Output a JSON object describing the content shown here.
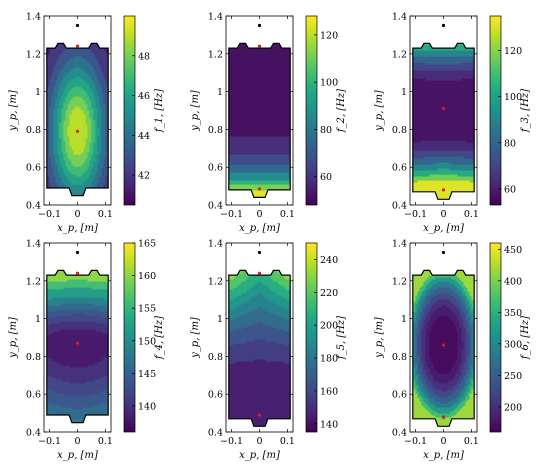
{
  "chart_data": [
    {
      "type": "heatmap",
      "xlabel": "x_p, [m]",
      "ylabel": "y_p, [m]",
      "xticks": [
        "−0.1",
        "0",
        "0.1"
      ],
      "yticks": [
        "0.4",
        "0.6",
        "0.8",
        "1",
        "1.2",
        "1.4"
      ],
      "xlim": [
        -0.12,
        0.12
      ],
      "ylim": [
        0.4,
        1.4
      ],
      "colorbar": {
        "label": "f_1, [Hz]",
        "ticks": [
          "42",
          "44",
          "46",
          "48"
        ],
        "range": [
          40.5,
          50
        ]
      },
      "bottom_edge": 0.49,
      "field": {
        "kind": "peak",
        "center": [
          0.0,
          0.79
        ],
        "max": 49.5,
        "min": 40.7
      },
      "contour_levels": [
        41.5,
        42.5,
        43.5,
        44.5,
        45.5,
        46.5,
        47.5,
        48.5
      ],
      "markers": {
        "red": [
          [
            0.0,
            1.24
          ],
          [
            0.0,
            0.79
          ]
        ],
        "black": [
          [
            0.0,
            1.35
          ]
        ]
      }
    },
    {
      "type": "heatmap",
      "xlabel": "x_p, [m]",
      "ylabel": "y_p, [m]",
      "xticks": [
        "−0.1",
        "0",
        "0.1"
      ],
      "yticks": [
        "0.4",
        "0.6",
        "0.8",
        "1",
        "1.2",
        "1.4"
      ],
      "xlim": [
        -0.12,
        0.12
      ],
      "ylim": [
        0.4,
        1.4
      ],
      "colorbar": {
        "label": "f_2, [Hz]",
        "ticks": [
          "60",
          "80",
          "100",
          "120"
        ],
        "range": [
          48,
          128
        ]
      },
      "bottom_edge": 0.48,
      "field": {
        "kind": "bottom",
        "min": 50,
        "max": 125
      },
      "contour_levels": [
        55,
        62,
        70,
        80,
        92,
        105,
        118
      ],
      "markers": {
        "red": [
          [
            0.0,
            1.24
          ],
          [
            0.0,
            0.485
          ]
        ],
        "black": [
          [
            0.0,
            1.35
          ]
        ]
      }
    },
    {
      "type": "heatmap",
      "xlabel": "x_p, [m]",
      "ylabel": "y_p, [m]",
      "xticks": [
        "−0.1",
        "0",
        "0.1"
      ],
      "yticks": [
        "0.4",
        "0.6",
        "0.8",
        "1",
        "1.2",
        "1.4"
      ],
      "xlim": [
        -0.12,
        0.12
      ],
      "ylim": [
        0.4,
        1.4
      ],
      "colorbar": {
        "label": "f_3, [Hz]",
        "ticks": [
          "60",
          "80",
          "100",
          "120"
        ],
        "range": [
          53,
          135
        ]
      },
      "bottom_edge": 0.47,
      "field": {
        "kind": "bothends",
        "center_y": 0.9,
        "min": 55,
        "max": 132
      },
      "contour_levels": [
        60,
        66,
        74,
        84,
        96,
        110,
        124
      ],
      "markers": {
        "red": [
          [
            0.0,
            0.91
          ],
          [
            0.0,
            0.48
          ]
        ],
        "black": [
          [
            0.0,
            1.35
          ]
        ]
      }
    },
    {
      "type": "heatmap",
      "xlabel": "x_p, [m]",
      "ylabel": "y_p, [m]",
      "xticks": [
        "−0.1",
        "0",
        "0.1"
      ],
      "yticks": [
        "0.4",
        "0.6",
        "0.8",
        "1",
        "1.2",
        "1.4"
      ],
      "xlim": [
        -0.12,
        0.12
      ],
      "ylim": [
        0.4,
        1.4
      ],
      "colorbar": {
        "label": "f_4, [Hz]",
        "ticks": [
          "140",
          "145",
          "150",
          "155",
          "160",
          "165"
        ],
        "range": [
          136,
          165
        ]
      },
      "bottom_edge": 0.49,
      "field": {
        "kind": "band",
        "center_y": 0.87,
        "min": 137,
        "max": 163
      },
      "contour_levels": [
        139,
        141,
        143,
        145,
        147,
        150,
        154,
        158
      ],
      "markers": {
        "red": [
          [
            0.0,
            1.24
          ],
          [
            0.0,
            0.87
          ]
        ],
        "black": [
          [
            0.0,
            1.35
          ]
        ]
      }
    },
    {
      "type": "heatmap",
      "xlabel": "x_p, [m]",
      "ylabel": "y_p, [m]",
      "xticks": [
        "−0.1",
        "0",
        "0.1"
      ],
      "yticks": [
        "0.4",
        "0.6",
        "0.8",
        "1",
        "1.2",
        "1.4"
      ],
      "xlim": [
        -0.12,
        0.12
      ],
      "ylim": [
        0.4,
        1.4
      ],
      "colorbar": {
        "label": "f_5, [Hz]",
        "ticks": [
          "140",
          "160",
          "180",
          "200",
          "220",
          "240"
        ],
        "range": [
          135,
          250
        ]
      },
      "bottom_edge": 0.47,
      "field": {
        "kind": "top",
        "min": 138,
        "max": 248
      },
      "contour_levels": [
        150,
        160,
        170,
        180,
        190,
        200,
        212,
        225,
        238
      ],
      "markers": {
        "red": [
          [
            0.0,
            1.24
          ],
          [
            0.0,
            0.49
          ]
        ],
        "black": [
          [
            0.0,
            1.35
          ]
        ]
      }
    },
    {
      "type": "heatmap",
      "xlabel": "x_p, [m]",
      "ylabel": "y_p, [m]",
      "xticks": [
        "−0.1",
        "0",
        "0.1"
      ],
      "yticks": [
        "0.4",
        "0.6",
        "0.8",
        "1",
        "1.2",
        "1.4"
      ],
      "xlim": [
        -0.12,
        0.12
      ],
      "ylim": [
        0.4,
        1.4
      ],
      "colorbar": {
        "label": "f_6, [Hz]",
        "ticks": [
          "200",
          "250",
          "300",
          "350",
          "400",
          "450"
        ],
        "range": [
          160,
          460
        ]
      },
      "bottom_edge": 0.47,
      "field": {
        "kind": "dome",
        "center_y": 0.86,
        "min": 165,
        "max": 455
      },
      "contour_levels": [
        175,
        190,
        210,
        235,
        265,
        300,
        340,
        390
      ],
      "markers": {
        "red": [
          [
            0.0,
            0.86
          ],
          [
            0.0,
            0.48
          ]
        ],
        "black": [
          [
            0.0,
            1.35
          ]
        ]
      }
    }
  ]
}
